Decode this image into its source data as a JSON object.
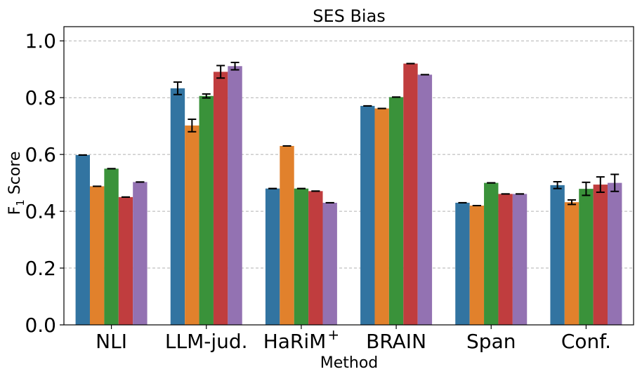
{
  "chart_data": {
    "type": "bar",
    "title": "SES Bias",
    "xlabel": "Method",
    "ylabel": "F",
    "ylabel_sub": "1",
    "ylabel_suffix": " Score",
    "categories": [
      "NLI",
      "LLM-jud.",
      "HaRiM",
      "BRAIN",
      "Span",
      "Conf."
    ],
    "category_superscripts": [
      "",
      "",
      "+",
      "",
      "",
      ""
    ],
    "ylim": [
      0,
      1.05
    ],
    "yticks": [
      0.0,
      0.2,
      0.4,
      0.6,
      0.8,
      1.0
    ],
    "ytick_labels": [
      "0.0",
      "0.2",
      "0.4",
      "0.6",
      "0.8",
      "1.0"
    ],
    "grid": true,
    "series": [
      {
        "color": "#3274a1",
        "values": [
          0.598,
          0.833,
          0.48,
          0.771,
          0.43,
          0.492
        ],
        "errors": [
          0,
          0.022,
          0,
          0,
          0,
          0.012
        ]
      },
      {
        "color": "#e1812c",
        "values": [
          0.488,
          0.702,
          0.63,
          0.762,
          0.42,
          0.432
        ],
        "errors": [
          0,
          0.022,
          0,
          0,
          0,
          0.008
        ]
      },
      {
        "color": "#3a923a",
        "values": [
          0.55,
          0.806,
          0.48,
          0.802,
          0.5,
          0.479
        ],
        "errors": [
          0,
          0.007,
          0,
          0,
          0,
          0.023
        ]
      },
      {
        "color": "#c03d3e",
        "values": [
          0.45,
          0.891,
          0.471,
          0.92,
          0.461,
          0.494
        ],
        "errors": [
          0,
          0.022,
          0,
          0,
          0,
          0.027
        ]
      },
      {
        "color": "#9372b2",
        "values": [
          0.503,
          0.911,
          0.43,
          0.881,
          0.461,
          0.5
        ],
        "errors": [
          0,
          0.013,
          0,
          0,
          0,
          0.03
        ]
      }
    ]
  }
}
